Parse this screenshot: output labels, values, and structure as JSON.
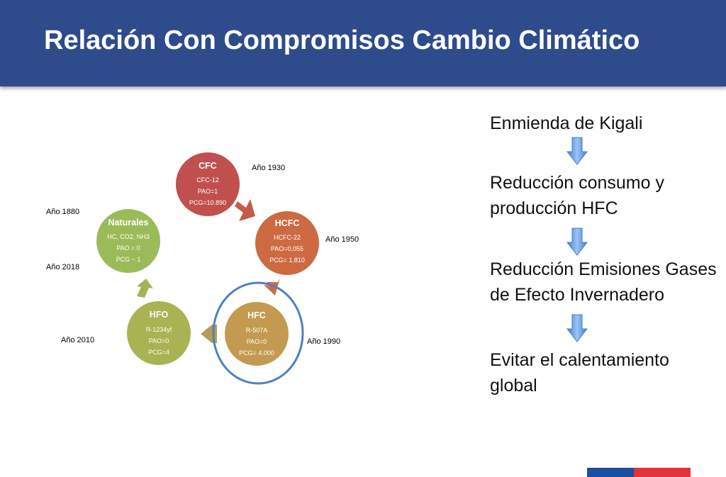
{
  "header": {
    "title": "Relación Con Compromisos Cambio Climático"
  },
  "cycle": {
    "nodes": [
      {
        "name": "CFC",
        "lines": [
          "CFC-12",
          "PAO=1",
          "PCG=10.890"
        ],
        "year": "Año 1930",
        "color": "#c0504d"
      },
      {
        "name": "HCFC",
        "lines": [
          "HCFC-22",
          "PAO=0,055",
          "PCG= 1.810"
        ],
        "year": "Año 1950",
        "color": "#cd6a42"
      },
      {
        "name": "HFC",
        "lines": [
          "R-507A",
          "PAO=0",
          "PCG= 4.000"
        ],
        "year": "Año 1990",
        "color": "#c39a4f"
      },
      {
        "name": "HFO",
        "lines": [
          "R-1234yf",
          "PAO=0",
          "PCG=4"
        ],
        "year": "Año 2010",
        "color": "#a9b351"
      },
      {
        "name": "Naturales",
        "lines": [
          "HC, CO2, NH3",
          "PAO = 0",
          "PCG ~ 1"
        ],
        "years": [
          "Año 1880",
          "Año 2018"
        ],
        "color": "#9bbb59"
      }
    ],
    "highlight_color": "#4f81bd"
  },
  "steps": [
    "Enmienda de Kigali",
    "Reducción consumo y producción HFC",
    "Reducción Emisiones Gases de Efecto Invernadero",
    "Evitar el calentamiento global"
  ]
}
